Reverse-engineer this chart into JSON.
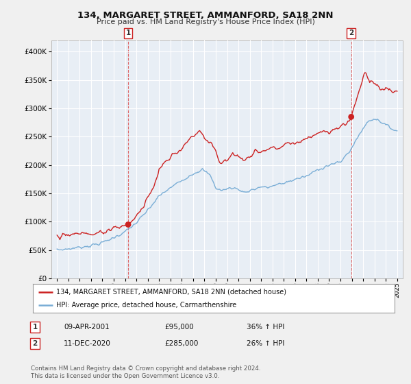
{
  "title": "134, MARGARET STREET, AMMANFORD, SA18 2NN",
  "subtitle": "Price paid vs. HM Land Registry's House Price Index (HPI)",
  "legend_line1": "134, MARGARET STREET, AMMANFORD, SA18 2NN (detached house)",
  "legend_line2": "HPI: Average price, detached house, Carmarthenshire",
  "annotation1_date": "09-APR-2001",
  "annotation1_price": "£95,000",
  "annotation1_hpi": "36% ↑ HPI",
  "annotation2_date": "11-DEC-2020",
  "annotation2_price": "£285,000",
  "annotation2_hpi": "26% ↑ HPI",
  "footnote": "Contains HM Land Registry data © Crown copyright and database right 2024.\nThis data is licensed under the Open Government Licence v3.0.",
  "red_color": "#cc2222",
  "blue_color": "#7aaed6",
  "dashed_line_color": "#dd6666",
  "background_color": "#f0f0f0",
  "plot_background": "#e8eef5",
  "grid_color": "#ffffff",
  "ylim": [
    0,
    420000
  ],
  "yticks": [
    0,
    50000,
    100000,
    150000,
    200000,
    250000,
    300000,
    350000,
    400000
  ],
  "sale1_year": 2001.27,
  "sale1_price": 95000,
  "sale2_year": 2020.95,
  "sale2_price": 285000,
  "xstart": 1995,
  "xend": 2025
}
